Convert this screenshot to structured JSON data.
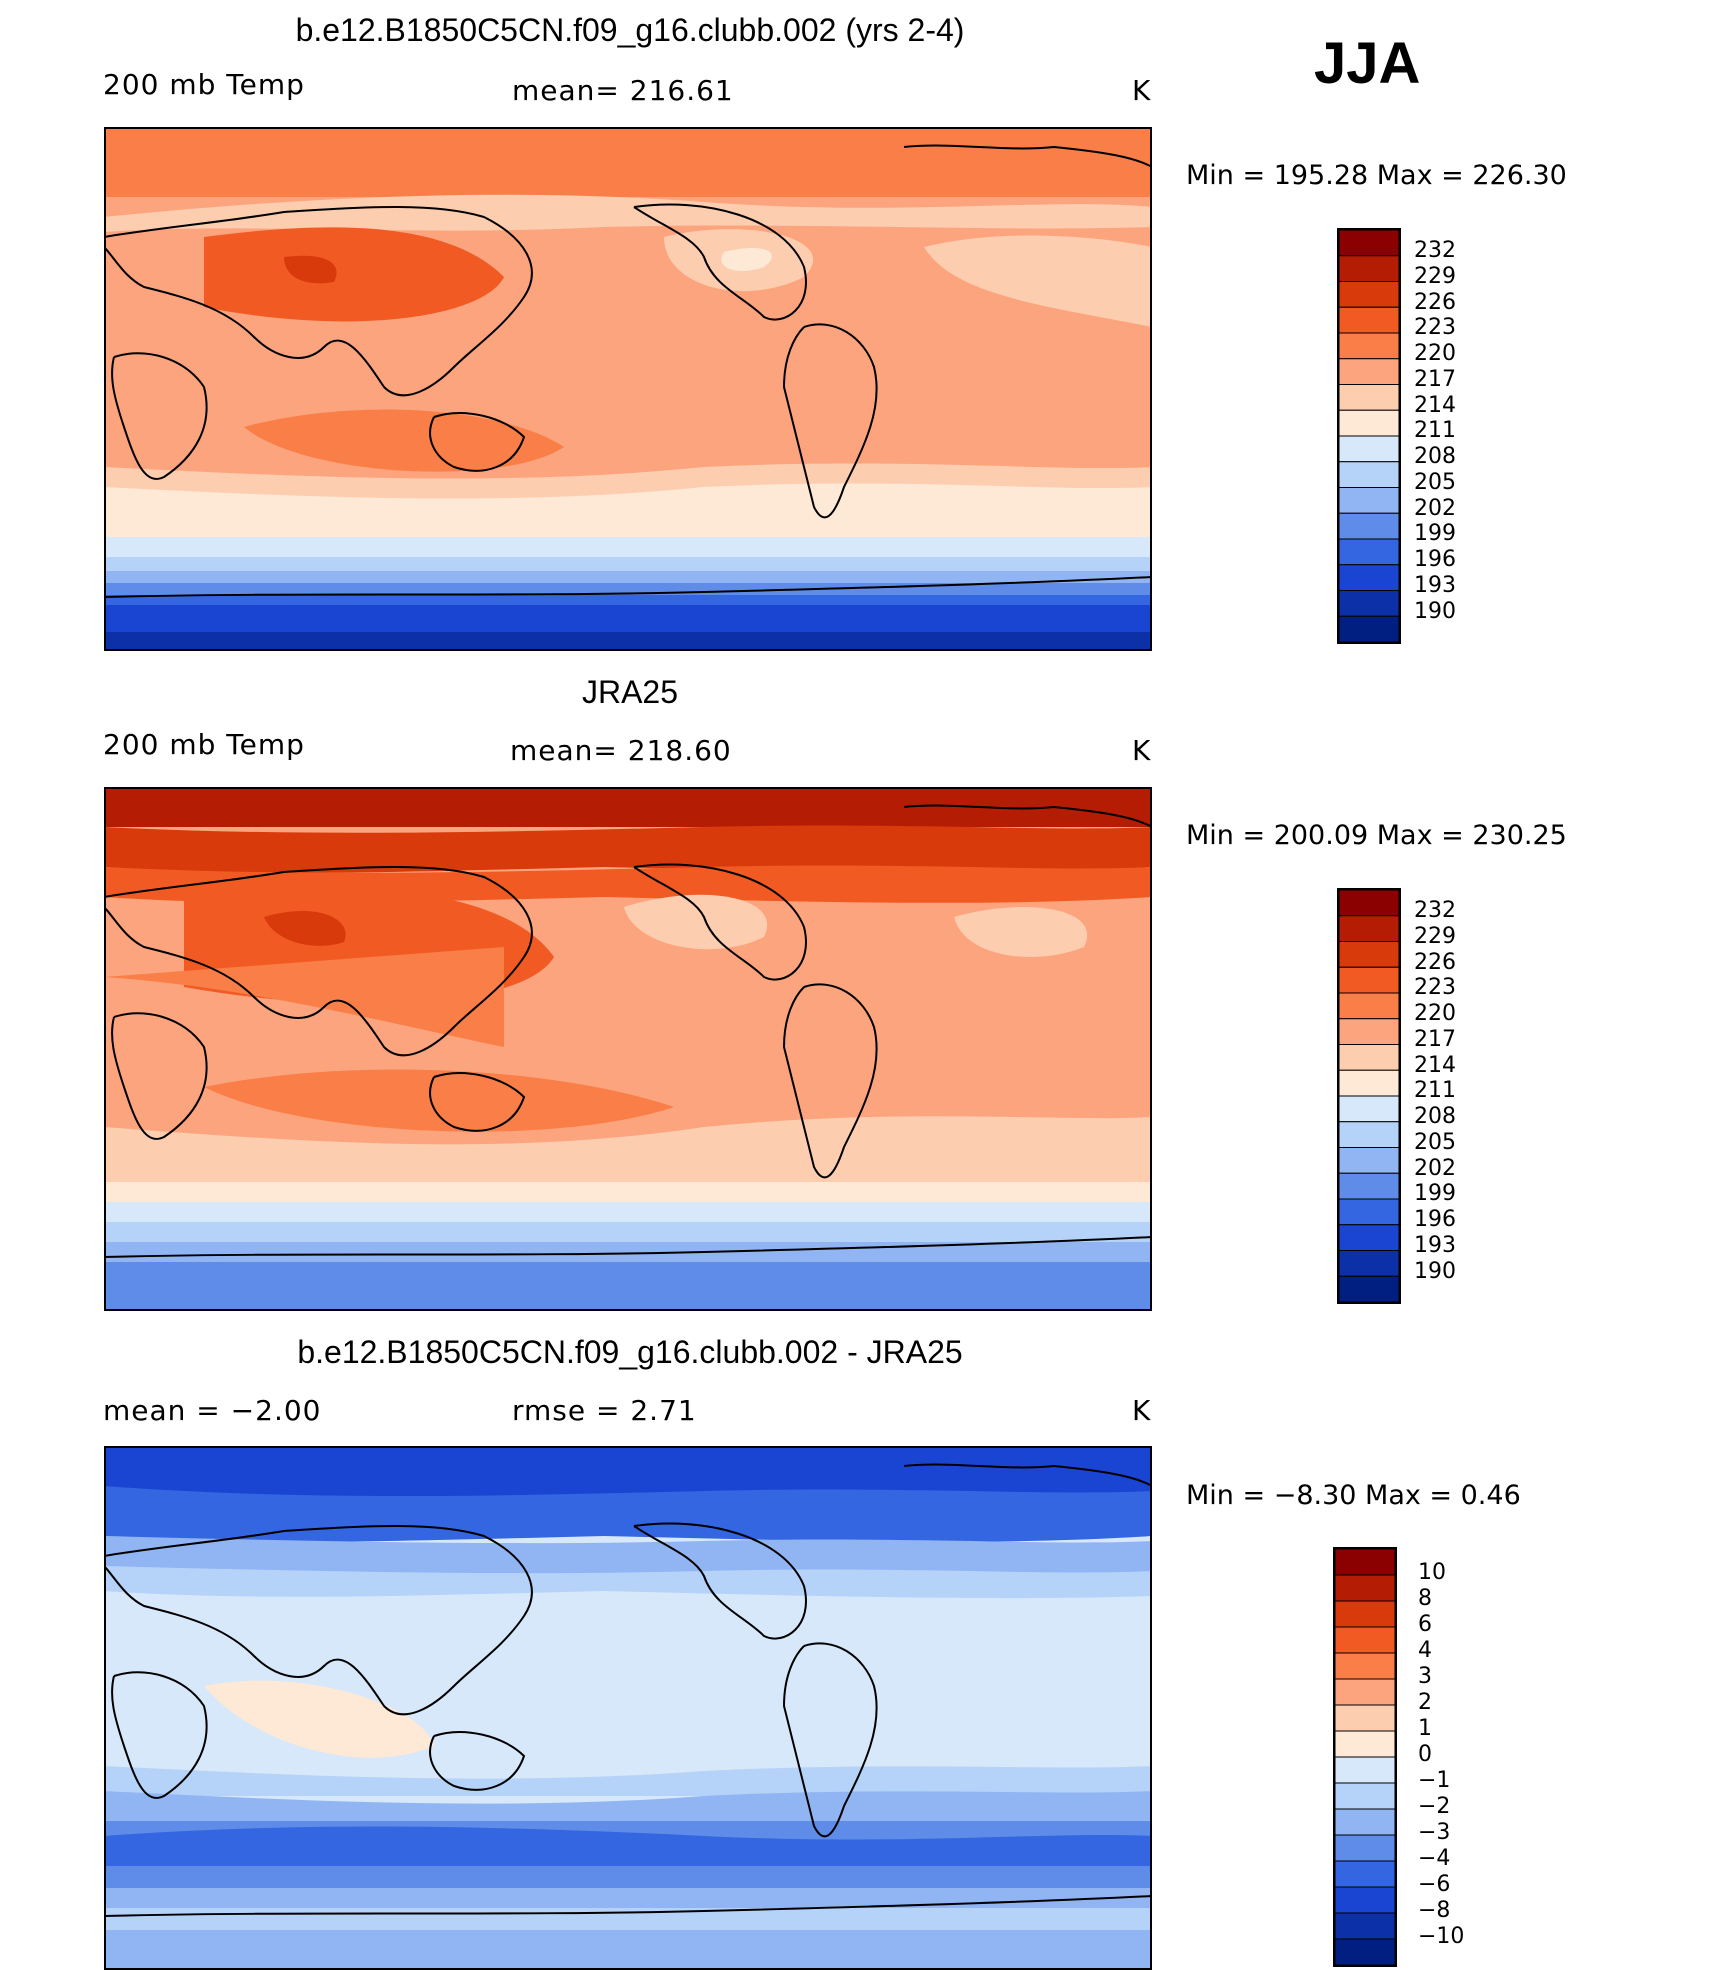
{
  "season": "JJA",
  "panels": [
    {
      "title": "b.e12.B1850C5CN.f09_g16.clubb.002 (yrs 2-4)",
      "left_label": "200 mb Temp",
      "center_label": "mean=  216.61",
      "units": "K",
      "minmax": "Min  =  195.28  Max  =  226.30",
      "colorbar": {
        "ticks": [
          "232",
          "229",
          "226",
          "223",
          "220",
          "217",
          "214",
          "211",
          "208",
          "205",
          "202",
          "199",
          "196",
          "193",
          "190"
        ],
        "colors": [
          "#8b0000",
          "#b41d03",
          "#d83a0c",
          "#f15a22",
          "#f97e47",
          "#fca47e",
          "#fdcdb0",
          "#fee8d6",
          "#d6e8fa",
          "#b5d2f8",
          "#91b5f2",
          "#5e8ce8",
          "#3466e1",
          "#1a45d2",
          "#0c30a8",
          "#001f80"
        ]
      },
      "chart_data": {
        "type": "heatmap",
        "field": "200 mb Temp",
        "statistic": "mean",
        "mean": 216.61,
        "min": 195.28,
        "max": 226.3,
        "units": "K",
        "contour_levels": [
          190,
          193,
          196,
          199,
          202,
          205,
          208,
          211,
          214,
          217,
          220,
          223,
          226,
          229,
          232
        ]
      }
    },
    {
      "title": "JRA25",
      "left_label": "200 mb Temp",
      "center_label": "mean=  218.60",
      "units": "K",
      "minmax": "Min  =  200.09  Max  =  230.25",
      "colorbar": {
        "ticks": [
          "232",
          "229",
          "226",
          "223",
          "220",
          "217",
          "214",
          "211",
          "208",
          "205",
          "202",
          "199",
          "196",
          "193",
          "190"
        ],
        "colors": [
          "#8b0000",
          "#b41d03",
          "#d83a0c",
          "#f15a22",
          "#f97e47",
          "#fca47e",
          "#fdcdb0",
          "#fee8d6",
          "#d6e8fa",
          "#b5d2f8",
          "#91b5f2",
          "#5e8ce8",
          "#3466e1",
          "#1a45d2",
          "#0c30a8",
          "#001f80"
        ]
      },
      "chart_data": {
        "type": "heatmap",
        "field": "200 mb Temp",
        "statistic": "mean",
        "mean": 218.6,
        "min": 200.09,
        "max": 230.25,
        "units": "K",
        "contour_levels": [
          190,
          193,
          196,
          199,
          202,
          205,
          208,
          211,
          214,
          217,
          220,
          223,
          226,
          229,
          232
        ]
      }
    },
    {
      "title": "b.e12.B1850C5CN.f09_g16.clubb.002 - JRA25",
      "left_label": "mean  =    −2.00",
      "center_label": "rmse  =     2.71",
      "units": "K",
      "minmax": "Min  =    −8.30  Max  =      0.46",
      "colorbar": {
        "ticks": [
          "10",
          "8",
          "6",
          "4",
          "3",
          "2",
          "1",
          "0",
          "−1",
          "−2",
          "−3",
          "−4",
          "−6",
          "−8",
          "−10"
        ],
        "colors": [
          "#8b0000",
          "#b41d03",
          "#d83a0c",
          "#f15a22",
          "#f97e47",
          "#fca47e",
          "#fdcdb0",
          "#fee8d6",
          "#d6e8fa",
          "#b5d2f8",
          "#91b5f2",
          "#5e8ce8",
          "#3466e1",
          "#1a45d2",
          "#0c30a8",
          "#001f80"
        ]
      },
      "chart_data": {
        "type": "heatmap",
        "field": "difference",
        "mean": -2.0,
        "rmse": 2.71,
        "min": -8.3,
        "max": 0.46,
        "units": "K",
        "contour_levels": [
          -10,
          -8,
          -6,
          -4,
          -3,
          -2,
          -1,
          0,
          1,
          2,
          3,
          4,
          6,
          8,
          10
        ]
      }
    }
  ]
}
